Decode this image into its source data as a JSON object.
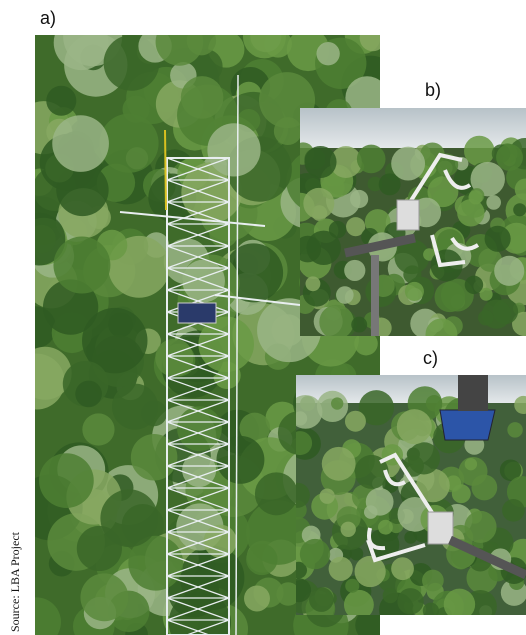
{
  "panels": [
    {
      "label": "a)"
    },
    {
      "label": "b)"
    },
    {
      "label": "c)"
    }
  ],
  "source": "Source: LBA Project"
}
